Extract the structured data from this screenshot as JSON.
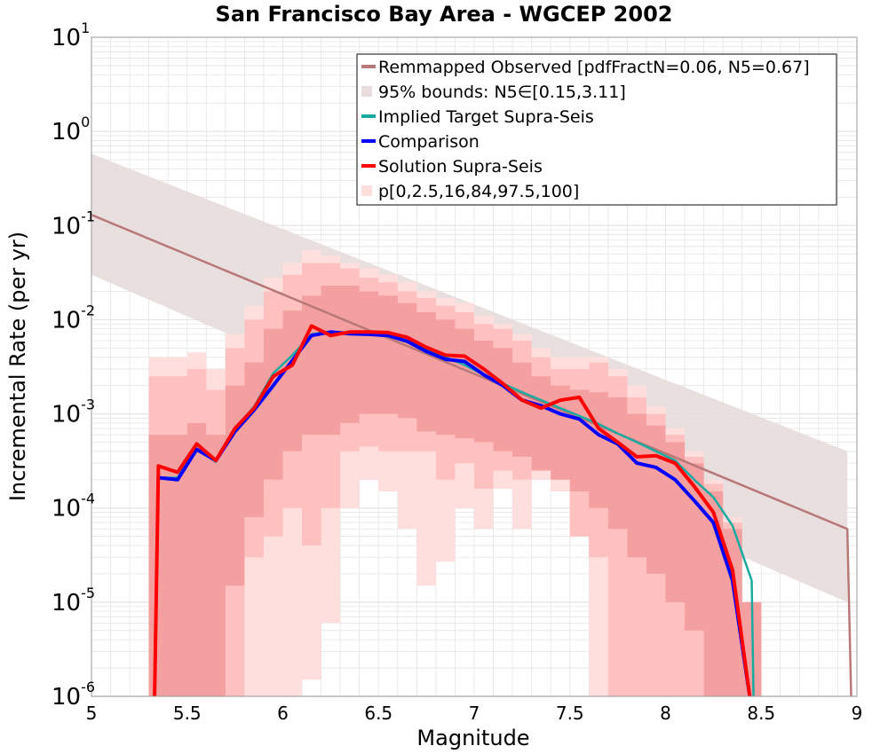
{
  "chart_data": {
    "type": "line",
    "title": "San Francisco Bay Area - WGCEP 2002",
    "xlabel": "Magnitude",
    "ylabel": "Incremental Rate (per yr)",
    "xlim": [
      5,
      9
    ],
    "ylim_log10": [
      -6,
      1
    ],
    "y_scale": "log",
    "x_ticks": [
      "5",
      "5.5",
      "6",
      "6.5",
      "7",
      "7.5",
      "8",
      "8.5",
      "9"
    ],
    "y_ticks": [
      {
        "base": "10",
        "exp": "1",
        "log10": 1
      },
      {
        "base": "10",
        "exp": "0",
        "log10": 0
      },
      {
        "base": "10",
        "exp": "-1",
        "log10": -1
      },
      {
        "base": "10",
        "exp": "-2",
        "log10": -2
      },
      {
        "base": "10",
        "exp": "-3",
        "log10": -3
      },
      {
        "base": "10",
        "exp": "-4",
        "log10": -4
      },
      {
        "base": "10",
        "exp": "-5",
        "log10": -5
      },
      {
        "base": "10",
        "exp": "-6",
        "log10": -6
      }
    ],
    "grid": true,
    "legend_position": "top-right",
    "colors": {
      "observed": "#b87878",
      "observed_band": "#e8dcdc",
      "target": "#1aaaa0",
      "comparison": "#0000ff",
      "solution": "#ff0000",
      "pct_outer": "#ffdede",
      "pct_mid": "#ffc0c0",
      "pct_inner": "#f5a0a0",
      "grid": "#e4e4e4"
    },
    "legend": [
      {
        "label": "Remmapped Observed [pdfFractN=0.06, N5=0.67]",
        "kind": "line",
        "color": "#b87878"
      },
      {
        "label": "95% bounds: N5∈[0.15,3.11]",
        "kind": "band",
        "color": "#e8dcdc"
      },
      {
        "label": "Implied Target Supra-Seis",
        "kind": "line",
        "color": "#1aaaa0"
      },
      {
        "label": "Comparison",
        "kind": "line",
        "color": "#0000ff"
      },
      {
        "label": "Solution Supra-Seis",
        "kind": "line",
        "color": "#ff0000"
      },
      {
        "label": "p[0,2.5,16,84,97.5,100]",
        "kind": "band",
        "color": "#ffdede"
      }
    ],
    "series": [
      {
        "name": "Remmapped Observed [pdfFractN=0.06, N5=0.67]",
        "x": [
          5.0,
          8.95,
          8.97
        ],
        "y": [
          0.13,
          6e-05,
          1e-06
        ]
      },
      {
        "name": "95% bounds: N5∈[0.15,3.11]",
        "x": [
          5.0,
          8.95
        ],
        "y_low": [
          0.03,
          1e-05
        ],
        "y_high": [
          0.58,
          0.0004
        ]
      },
      {
        "name": "Implied Target Supra-Seis",
        "x": [
          5.35,
          5.45,
          5.55,
          5.65,
          5.75,
          5.85,
          5.95,
          6.05,
          6.15,
          6.25,
          6.35,
          6.45,
          6.55,
          6.65,
          6.75,
          6.85,
          6.95,
          7.05,
          7.15,
          7.25,
          7.35,
          7.45,
          7.55,
          7.65,
          7.75,
          7.85,
          7.95,
          8.05,
          8.15,
          8.25,
          8.35,
          8.45,
          8.46
        ],
        "y": [
          0.00021,
          0.00021,
          0.00043,
          0.00031,
          0.0007,
          0.0012,
          0.0027,
          0.0042,
          0.007,
          0.0075,
          0.0072,
          0.0071,
          0.0068,
          0.006,
          0.0048,
          0.004,
          0.0033,
          0.0026,
          0.0021,
          0.0017,
          0.0014,
          0.00115,
          0.00095,
          0.00078,
          0.00062,
          0.0005,
          0.0004,
          0.00032,
          0.0002,
          0.00013,
          6.5e-05,
          1.7e-05,
          1e-06
        ]
      },
      {
        "name": "Comparison",
        "x": [
          5.35,
          5.45,
          5.55,
          5.65,
          5.75,
          5.85,
          5.95,
          6.05,
          6.15,
          6.25,
          6.35,
          6.45,
          6.55,
          6.65,
          6.75,
          6.85,
          6.95,
          7.05,
          7.15,
          7.25,
          7.35,
          7.45,
          7.55,
          7.65,
          7.75,
          7.85,
          7.95,
          8.05,
          8.15,
          8.25,
          8.35,
          8.44
        ],
        "y": [
          0.00021,
          0.0002,
          0.00042,
          0.00032,
          0.00065,
          0.0011,
          0.002,
          0.0037,
          0.0068,
          0.0074,
          0.0071,
          0.007,
          0.0068,
          0.0059,
          0.0046,
          0.0038,
          0.0036,
          0.0026,
          0.002,
          0.0014,
          0.00122,
          0.001,
          0.00088,
          0.0006,
          0.00048,
          0.0003,
          0.00027,
          0.0002,
          0.00012,
          7e-05,
          1.7e-05,
          1e-06
        ]
      },
      {
        "name": "Solution Supra-Seis",
        "x": [
          5.33,
          5.35,
          5.45,
          5.55,
          5.65,
          5.75,
          5.85,
          5.95,
          6.05,
          6.15,
          6.25,
          6.35,
          6.45,
          6.55,
          6.65,
          6.75,
          6.85,
          6.95,
          7.05,
          7.15,
          7.25,
          7.35,
          7.45,
          7.55,
          7.65,
          7.75,
          7.85,
          7.95,
          8.05,
          8.15,
          8.25,
          8.35,
          8.44
        ],
        "y": [
          1e-06,
          0.00028,
          0.00024,
          0.00048,
          0.00032,
          0.0007,
          0.00115,
          0.0025,
          0.0033,
          0.0086,
          0.0068,
          0.0074,
          0.0074,
          0.0073,
          0.0065,
          0.0051,
          0.0042,
          0.0041,
          0.003,
          0.0021,
          0.0014,
          0.00115,
          0.0014,
          0.0015,
          0.0007,
          0.0005,
          0.00035,
          0.00036,
          0.0003,
          0.00017,
          9e-05,
          2.2e-05,
          1e-06
        ]
      },
      {
        "name": "p[0,2.5,16,84,97.5,100]",
        "x": [
          5.35,
          5.45,
          5.55,
          5.65,
          5.75,
          5.85,
          5.95,
          6.05,
          6.15,
          6.25,
          6.35,
          6.45,
          6.55,
          6.65,
          6.75,
          6.85,
          6.95,
          7.05,
          7.15,
          7.25,
          7.35,
          7.45,
          7.55,
          7.65,
          7.75,
          7.85,
          7.95,
          8.05,
          8.15,
          8.25,
          8.35,
          8.45
        ],
        "p0": [
          1e-06,
          1e-06,
          1e-06,
          1e-06,
          1e-06,
          1e-06,
          1e-06,
          1e-06,
          1.5e-06,
          6e-06,
          0.0001,
          0.0002,
          0.00015,
          6e-05,
          1.5e-05,
          2.7e-05,
          0.0001,
          6e-05,
          0.00016,
          6e-05,
          0.0002,
          0.00015,
          5e-05,
          1e-06,
          1e-06,
          1e-06,
          1e-06,
          1e-06,
          1e-06,
          1e-06,
          1e-06,
          1e-06
        ],
        "p2_5": [
          1e-06,
          1e-06,
          1e-06,
          1e-06,
          1e-06,
          3e-05,
          5e-05,
          0.0001,
          4e-05,
          0.0001,
          0.0004,
          0.00045,
          0.0004,
          0.0004,
          0.0004,
          0.0002,
          0.0003,
          0.00016,
          0.00025,
          0.0002,
          0.00035,
          0.0002,
          5e-05,
          3e-05,
          1e-06,
          1e-06,
          1e-06,
          1e-06,
          1e-06,
          1e-06,
          1e-06,
          1e-06
        ],
        "p16": [
          1e-06,
          1e-06,
          1e-06,
          1e-06,
          1.5e-05,
          8e-05,
          0.0002,
          0.0004,
          0.0006,
          0.0006,
          0.0008,
          0.001,
          0.001,
          0.0009,
          0.00065,
          0.0006,
          0.00055,
          0.0005,
          0.0004,
          0.00035,
          0.00025,
          0.0002,
          0.00015,
          0.0001,
          6e-05,
          3e-05,
          2e-05,
          1e-05,
          5e-06,
          1e-06,
          1e-06,
          1e-06
        ],
        "p84": [
          0.0006,
          0.0006,
          0.0008,
          0.0006,
          0.002,
          0.0035,
          0.008,
          0.0125,
          0.018,
          0.023,
          0.023,
          0.02,
          0.018,
          0.015,
          0.012,
          0.01,
          0.008,
          0.006,
          0.005,
          0.0035,
          0.0025,
          0.002,
          0.0018,
          0.0017,
          0.0015,
          0.001,
          0.00075,
          0.0005,
          0.0003,
          0.00015,
          6e-05,
          1e-05
        ],
        "p97_5": [
          0.0025,
          0.0025,
          0.003,
          0.0018,
          0.005,
          0.01,
          0.02,
          0.03,
          0.04,
          0.04,
          0.035,
          0.028,
          0.025,
          0.02,
          0.017,
          0.014,
          0.012,
          0.009,
          0.008,
          0.006,
          0.004,
          0.003,
          0.003,
          0.0035,
          0.0025,
          0.0015,
          0.001,
          0.0006,
          0.00035,
          0.00018,
          7e-05,
          1e-05
        ],
        "p100": [
          0.004,
          0.004,
          0.0045,
          0.003,
          0.007,
          0.014,
          0.028,
          0.04,
          0.055,
          0.048,
          0.04,
          0.035,
          0.03,
          0.025,
          0.02,
          0.017,
          0.015,
          0.011,
          0.009,
          0.007,
          0.005,
          0.004,
          0.004,
          0.004,
          0.003,
          0.002,
          0.0012,
          0.0007,
          0.0004,
          0.0002,
          8e-05,
          1e-05
        ]
      }
    ]
  }
}
